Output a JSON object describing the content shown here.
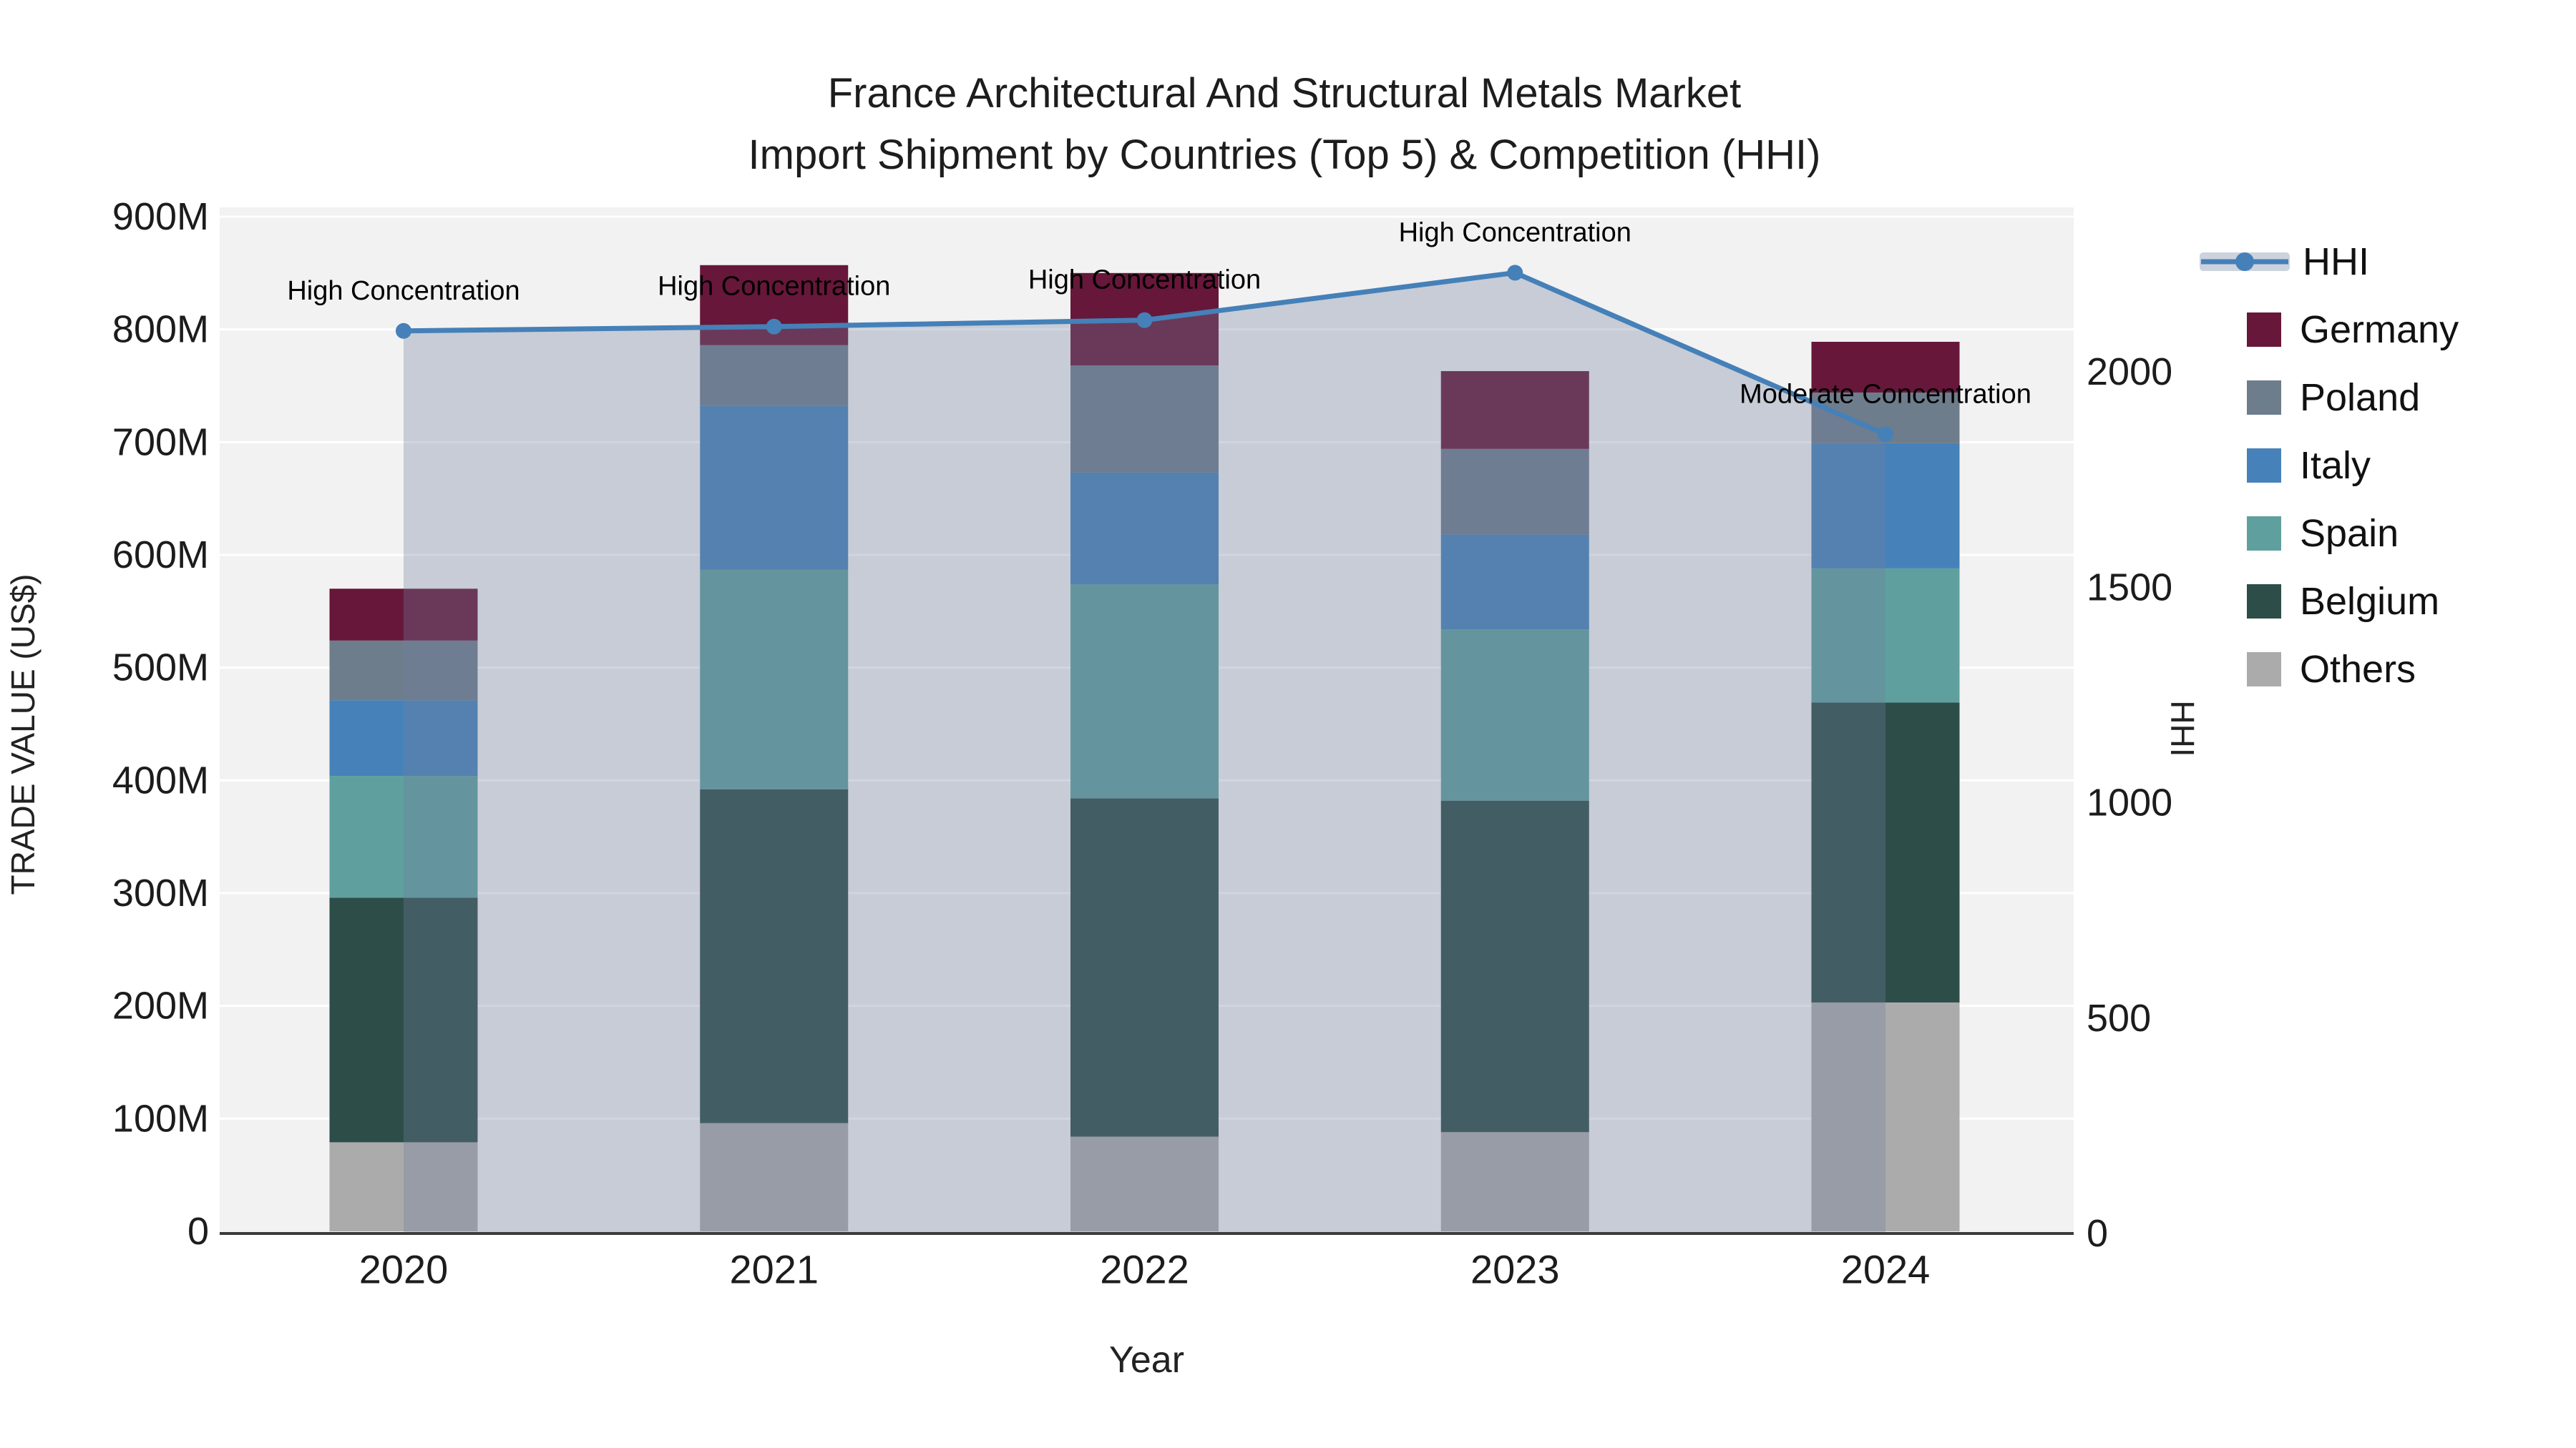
{
  "title": {
    "line1": "France Architectural And Structural Metals Market",
    "line2": "Import Shipment by Countries (Top 5) & Competition (HHI)"
  },
  "axes": {
    "x": {
      "title": "Year",
      "tick_labels": [
        "2020",
        "2021",
        "2022",
        "2023",
        "2024"
      ]
    },
    "y_left": {
      "title": "TRADE VALUE (US$)",
      "tick_labels": [
        "0",
        "100M",
        "200M",
        "300M",
        "400M",
        "500M",
        "600M",
        "700M",
        "800M",
        "900M"
      ],
      "tick_values": [
        0,
        100,
        200,
        300,
        400,
        500,
        600,
        700,
        800,
        900
      ]
    },
    "y_right": {
      "title": "HHI",
      "tick_labels": [
        "0",
        "500",
        "1000",
        "1500",
        "2000"
      ],
      "tick_values": [
        0,
        500,
        1000,
        1500,
        2000
      ]
    }
  },
  "legend": {
    "items": [
      {
        "label": "HHI",
        "type": "line",
        "color": "#4580b8"
      },
      {
        "label": "Germany",
        "type": "swatch",
        "color": "#67173a"
      },
      {
        "label": "Poland",
        "type": "swatch",
        "color": "#6e7d8c"
      },
      {
        "label": "Italy",
        "type": "swatch",
        "color": "#4682b9"
      },
      {
        "label": "Spain",
        "type": "swatch",
        "color": "#5fa09e"
      },
      {
        "label": "Belgium",
        "type": "swatch",
        "color": "#2d4d48"
      },
      {
        "label": "Others",
        "type": "swatch",
        "color": "#ababab"
      }
    ]
  },
  "chart_data": {
    "type": "bar+line",
    "title": "France Architectural And Structural Metals Market Import Shipment by Countries (Top 5) & Competition (HHI)",
    "xlabel": "Year",
    "ylabel_left": "TRADE VALUE (US$)",
    "ylabel_right": "HHI",
    "categories": [
      "2020",
      "2021",
      "2022",
      "2023",
      "2024"
    ],
    "bar_unit": "M US$",
    "stack_order_bottom_to_top": [
      "Others",
      "Belgium",
      "Spain",
      "Italy",
      "Poland",
      "Germany"
    ],
    "series": [
      {
        "name": "Others",
        "color": "#ababab",
        "values": [
          79,
          96,
          84,
          88,
          203
        ]
      },
      {
        "name": "Belgium",
        "color": "#2d4d48",
        "values": [
          217,
          296,
          300,
          294,
          266
        ]
      },
      {
        "name": "Spain",
        "color": "#5fa09e",
        "values": [
          108,
          195,
          190,
          152,
          119
        ]
      },
      {
        "name": "Italy",
        "color": "#4682b9",
        "values": [
          67,
          145,
          99,
          84,
          111
        ]
      },
      {
        "name": "Poland",
        "color": "#6e7d8c",
        "values": [
          53,
          54,
          95,
          76,
          45
        ]
      },
      {
        "name": "Germany",
        "color": "#67173a",
        "values": [
          46,
          71,
          82,
          69,
          45
        ]
      }
    ],
    "bar_totals": [
      570,
      857,
      850,
      763,
      789
    ],
    "line_series": {
      "name": "HHI",
      "axis": "right",
      "color": "#4580b8",
      "fill_color": "rgba(113,128,159,0.33)",
      "values": [
        2095,
        2105,
        2120,
        2230,
        1855
      ]
    },
    "annotations": [
      {
        "text": "High Concentration",
        "x_index": 0
      },
      {
        "text": "High Concentration",
        "x_index": 1
      },
      {
        "text": "High Concentration",
        "x_index": 2
      },
      {
        "text": "High Concentration",
        "x_index": 3
      },
      {
        "text": "Moderate Concentration",
        "x_index": 4
      }
    ],
    "ylim_left": [
      0,
      900
    ],
    "ylim_right_shown_ticks": [
      0,
      500,
      1000,
      1500,
      2000
    ],
    "grid": "horizontal-100M-white",
    "legend_position": "right",
    "plot_bg": "#f2f2f2"
  },
  "colors": {
    "plot_bg": "#f2f2f2",
    "gridline": "#ffffff",
    "axis_line": "#3b3b3b",
    "hhi_line": "#4580b8",
    "hhi_fill": "rgba(113,128,159,0.33)",
    "legend_line_band": "#ccd3de"
  }
}
